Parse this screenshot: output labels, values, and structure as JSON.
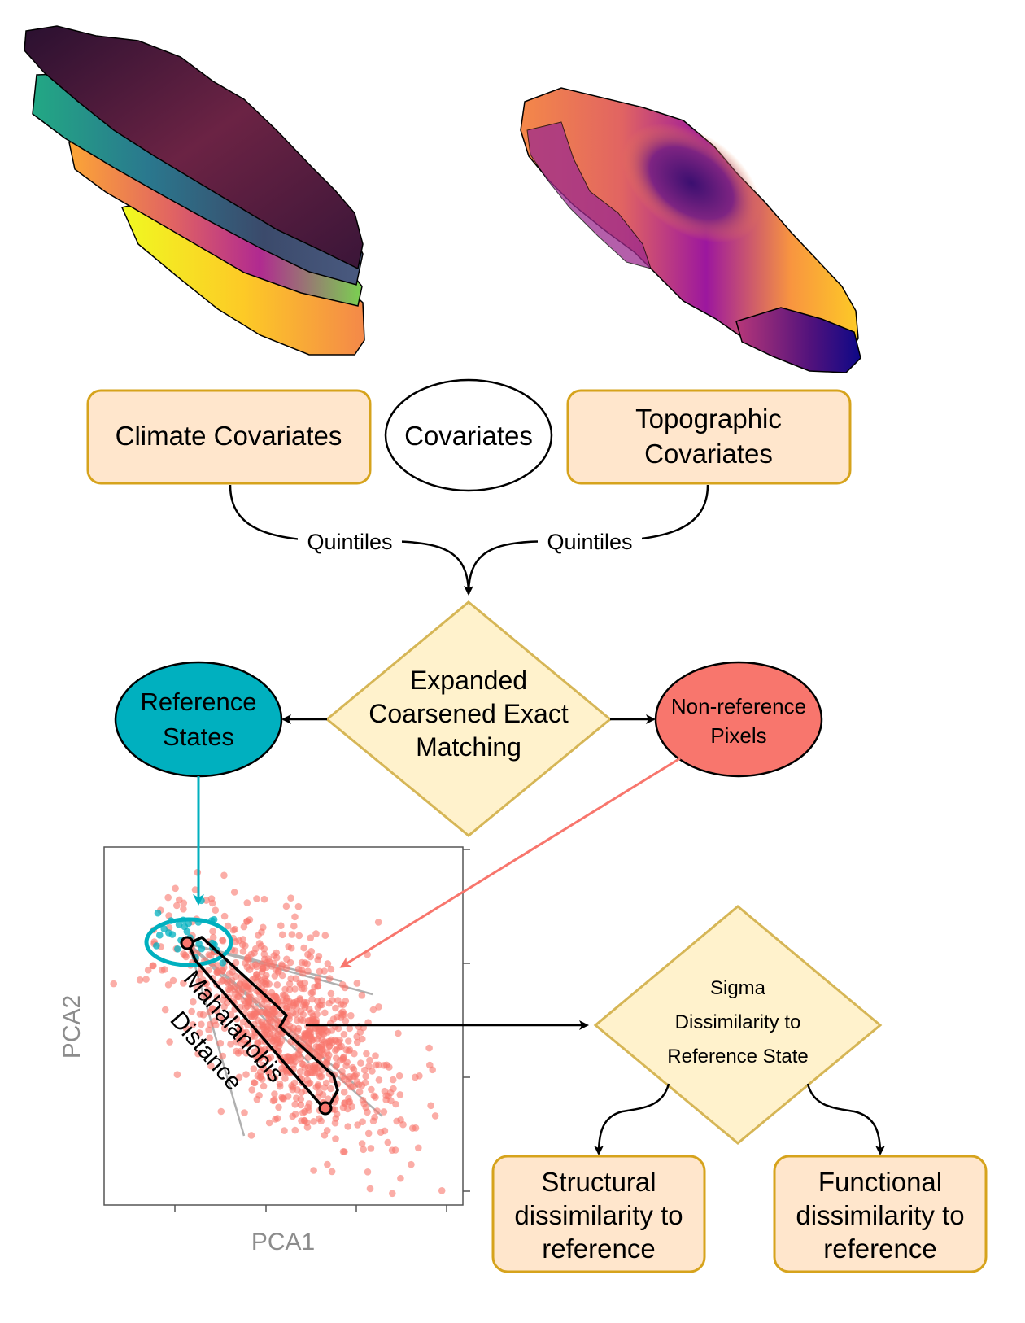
{
  "nodes": {
    "climate": "Climate Covariates",
    "covariates": "Covariates",
    "topographic": [
      "Topographic",
      "Covariates"
    ],
    "matching": [
      "Expanded",
      "Coarsened Exact",
      "Matching"
    ],
    "reference_states": [
      "Reference",
      "States"
    ],
    "non_reference": [
      "Non-reference",
      "Pixels"
    ],
    "sigma": [
      "Sigma",
      "Dissimilarity to",
      "Reference State"
    ],
    "structural": [
      "Structural",
      "dissimilarity to",
      "reference"
    ],
    "functional": [
      "Functional",
      "dissimilarity to",
      "reference"
    ]
  },
  "edges": {
    "quintiles_left": "Quintiles",
    "quintiles_right": "Quintiles"
  },
  "scatter": {
    "xlabel": "PCA1",
    "ylabel": "PCA2",
    "distance_label": [
      "Mahalanobis",
      "Distance"
    ]
  },
  "colors": {
    "reference": "#00b0bf",
    "non_reference": "#f8766d",
    "box_fill": "#ffe6cc",
    "box_stroke": "#d6a31c",
    "diamond_fill": "#fff2cc",
    "diamond_stroke": "#d6b656"
  }
}
